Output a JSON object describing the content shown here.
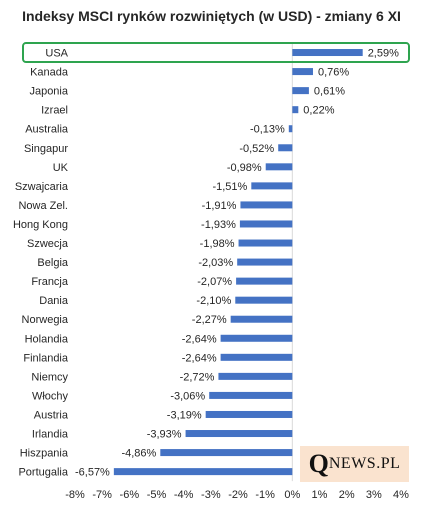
{
  "chart_data": {
    "type": "bar",
    "orientation": "horizontal",
    "title": "Indeksy MSCI rynków rozwiniętych (w USD) - zmiany 6 XI",
    "categories": [
      "USA",
      "Kanada",
      "Japonia",
      "Izrael",
      "Australia",
      "Singapur",
      "UK",
      "Szwajcaria",
      "Nowa Zel.",
      "Hong Kong",
      "Szwecja",
      "Belgia",
      "Francja",
      "Dania",
      "Norwegia",
      "Holandia",
      "Finlandia",
      "Niemcy",
      "Włochy",
      "Austria",
      "Irlandia",
      "Hiszpania",
      "Portugalia"
    ],
    "values": [
      2.59,
      0.76,
      0.61,
      0.22,
      -0.13,
      -0.52,
      -0.98,
      -1.51,
      -1.91,
      -1.93,
      -1.98,
      -2.03,
      -2.07,
      -2.1,
      -2.27,
      -2.64,
      -2.64,
      -2.72,
      -3.06,
      -3.19,
      -3.93,
      -4.86,
      -6.57
    ],
    "value_labels": [
      "2,59%",
      "0,76%",
      "0,61%",
      "0,22%",
      "-0,13%",
      "-0,52%",
      "-0,98%",
      "-1,51%",
      "-1,91%",
      "-1,93%",
      "-1,98%",
      "-2,03%",
      "-2,07%",
      "-2,10%",
      "-2,27%",
      "-2,64%",
      "-2,64%",
      "-2,72%",
      "-3,06%",
      "-3,19%",
      "-3,93%",
      "-4,86%",
      "-6,57%"
    ],
    "xlim": [
      -8,
      4
    ],
    "xticks": [
      -8,
      -7,
      -6,
      -5,
      -4,
      -3,
      -2,
      -1,
      0,
      1,
      2,
      3,
      4
    ],
    "xtick_labels": [
      "-8%",
      "-7%",
      "-6%",
      "-5%",
      "-4%",
      "-3%",
      "-2%",
      "-1%",
      "0%",
      "1%",
      "2%",
      "3%",
      "4%"
    ],
    "highlighted_category": "USA",
    "grid": false,
    "legend": "none",
    "colors": {
      "bar": "#4472c4",
      "highlight_border": "#2ea44f",
      "axis": "#d9d9d9",
      "logo_bg": "#fae3cf"
    }
  },
  "logo": {
    "q": "Q",
    "rest": "NEWS.PL"
  }
}
